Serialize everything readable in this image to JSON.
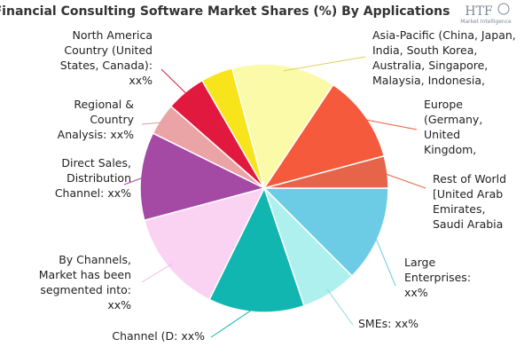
{
  "chart_data": {
    "type": "pie",
    "title": "Financial Consulting Software Market Shares (%) By Applications",
    "slices": [
      {
        "lines": [
          "Large",
          "Enterprises:",
          "xx%"
        ],
        "value": 12,
        "color": "#6dcce5",
        "leader": "#6dcce5"
      },
      {
        "lines": [
          "SMEs: xx%"
        ],
        "value": 7,
        "color": "#aef0ee",
        "leader": "#9ad8d8"
      },
      {
        "lines": [
          "Channel (D: xx%"
        ],
        "value": 12,
        "color": "#12b6b1",
        "leader": "#12b6b1"
      },
      {
        "lines": [
          "By Channels,",
          "Market has been",
          "segmented into:",
          "xx%"
        ],
        "value": 13,
        "color": "#fad2f2",
        "leader": "#f0b8e6"
      },
      {
        "lines": [
          "Direct Sales,",
          "Distribution",
          "Channel: xx%"
        ],
        "value": 11,
        "color": "#a44aa5",
        "leader": "#a44aa5"
      },
      {
        "lines": [
          "Regional &",
          "Country",
          "Analysis: xx%"
        ],
        "value": 4,
        "color": "#eba4a6",
        "leader": "#e09a9c"
      },
      {
        "lines": [
          "North America",
          "Country (United",
          "States, Canada):",
          "xx%"
        ],
        "value": 5,
        "color": "#e2193f",
        "leader": "#e2193f"
      },
      {
        "lines": [],
        "value": 4,
        "color": "#f7e41b",
        "leader": ""
      },
      {
        "lines": [
          "Asia-Pacific (China, Japan,",
          "India, South Korea,",
          "Australia, Singapore,",
          "Malaysia, Indonesia,"
        ],
        "value": 13,
        "color": "#fafaa9",
        "leader": "#e0d060"
      },
      {
        "lines": [
          "Europe",
          "(Germany,",
          "United",
          "Kingdom,"
        ],
        "value": 11,
        "color": "#f55a3c",
        "leader": "#f55a3c"
      },
      {
        "lines": [
          "Rest of World",
          "[United Arab",
          "Emirates,",
          "Saudi Arabia"
        ],
        "value": 4,
        "color": "#e6644a",
        "leader": "#e6644a"
      }
    ]
  },
  "logo": {
    "text": "HTF",
    "sub": "Market Intelligence"
  }
}
